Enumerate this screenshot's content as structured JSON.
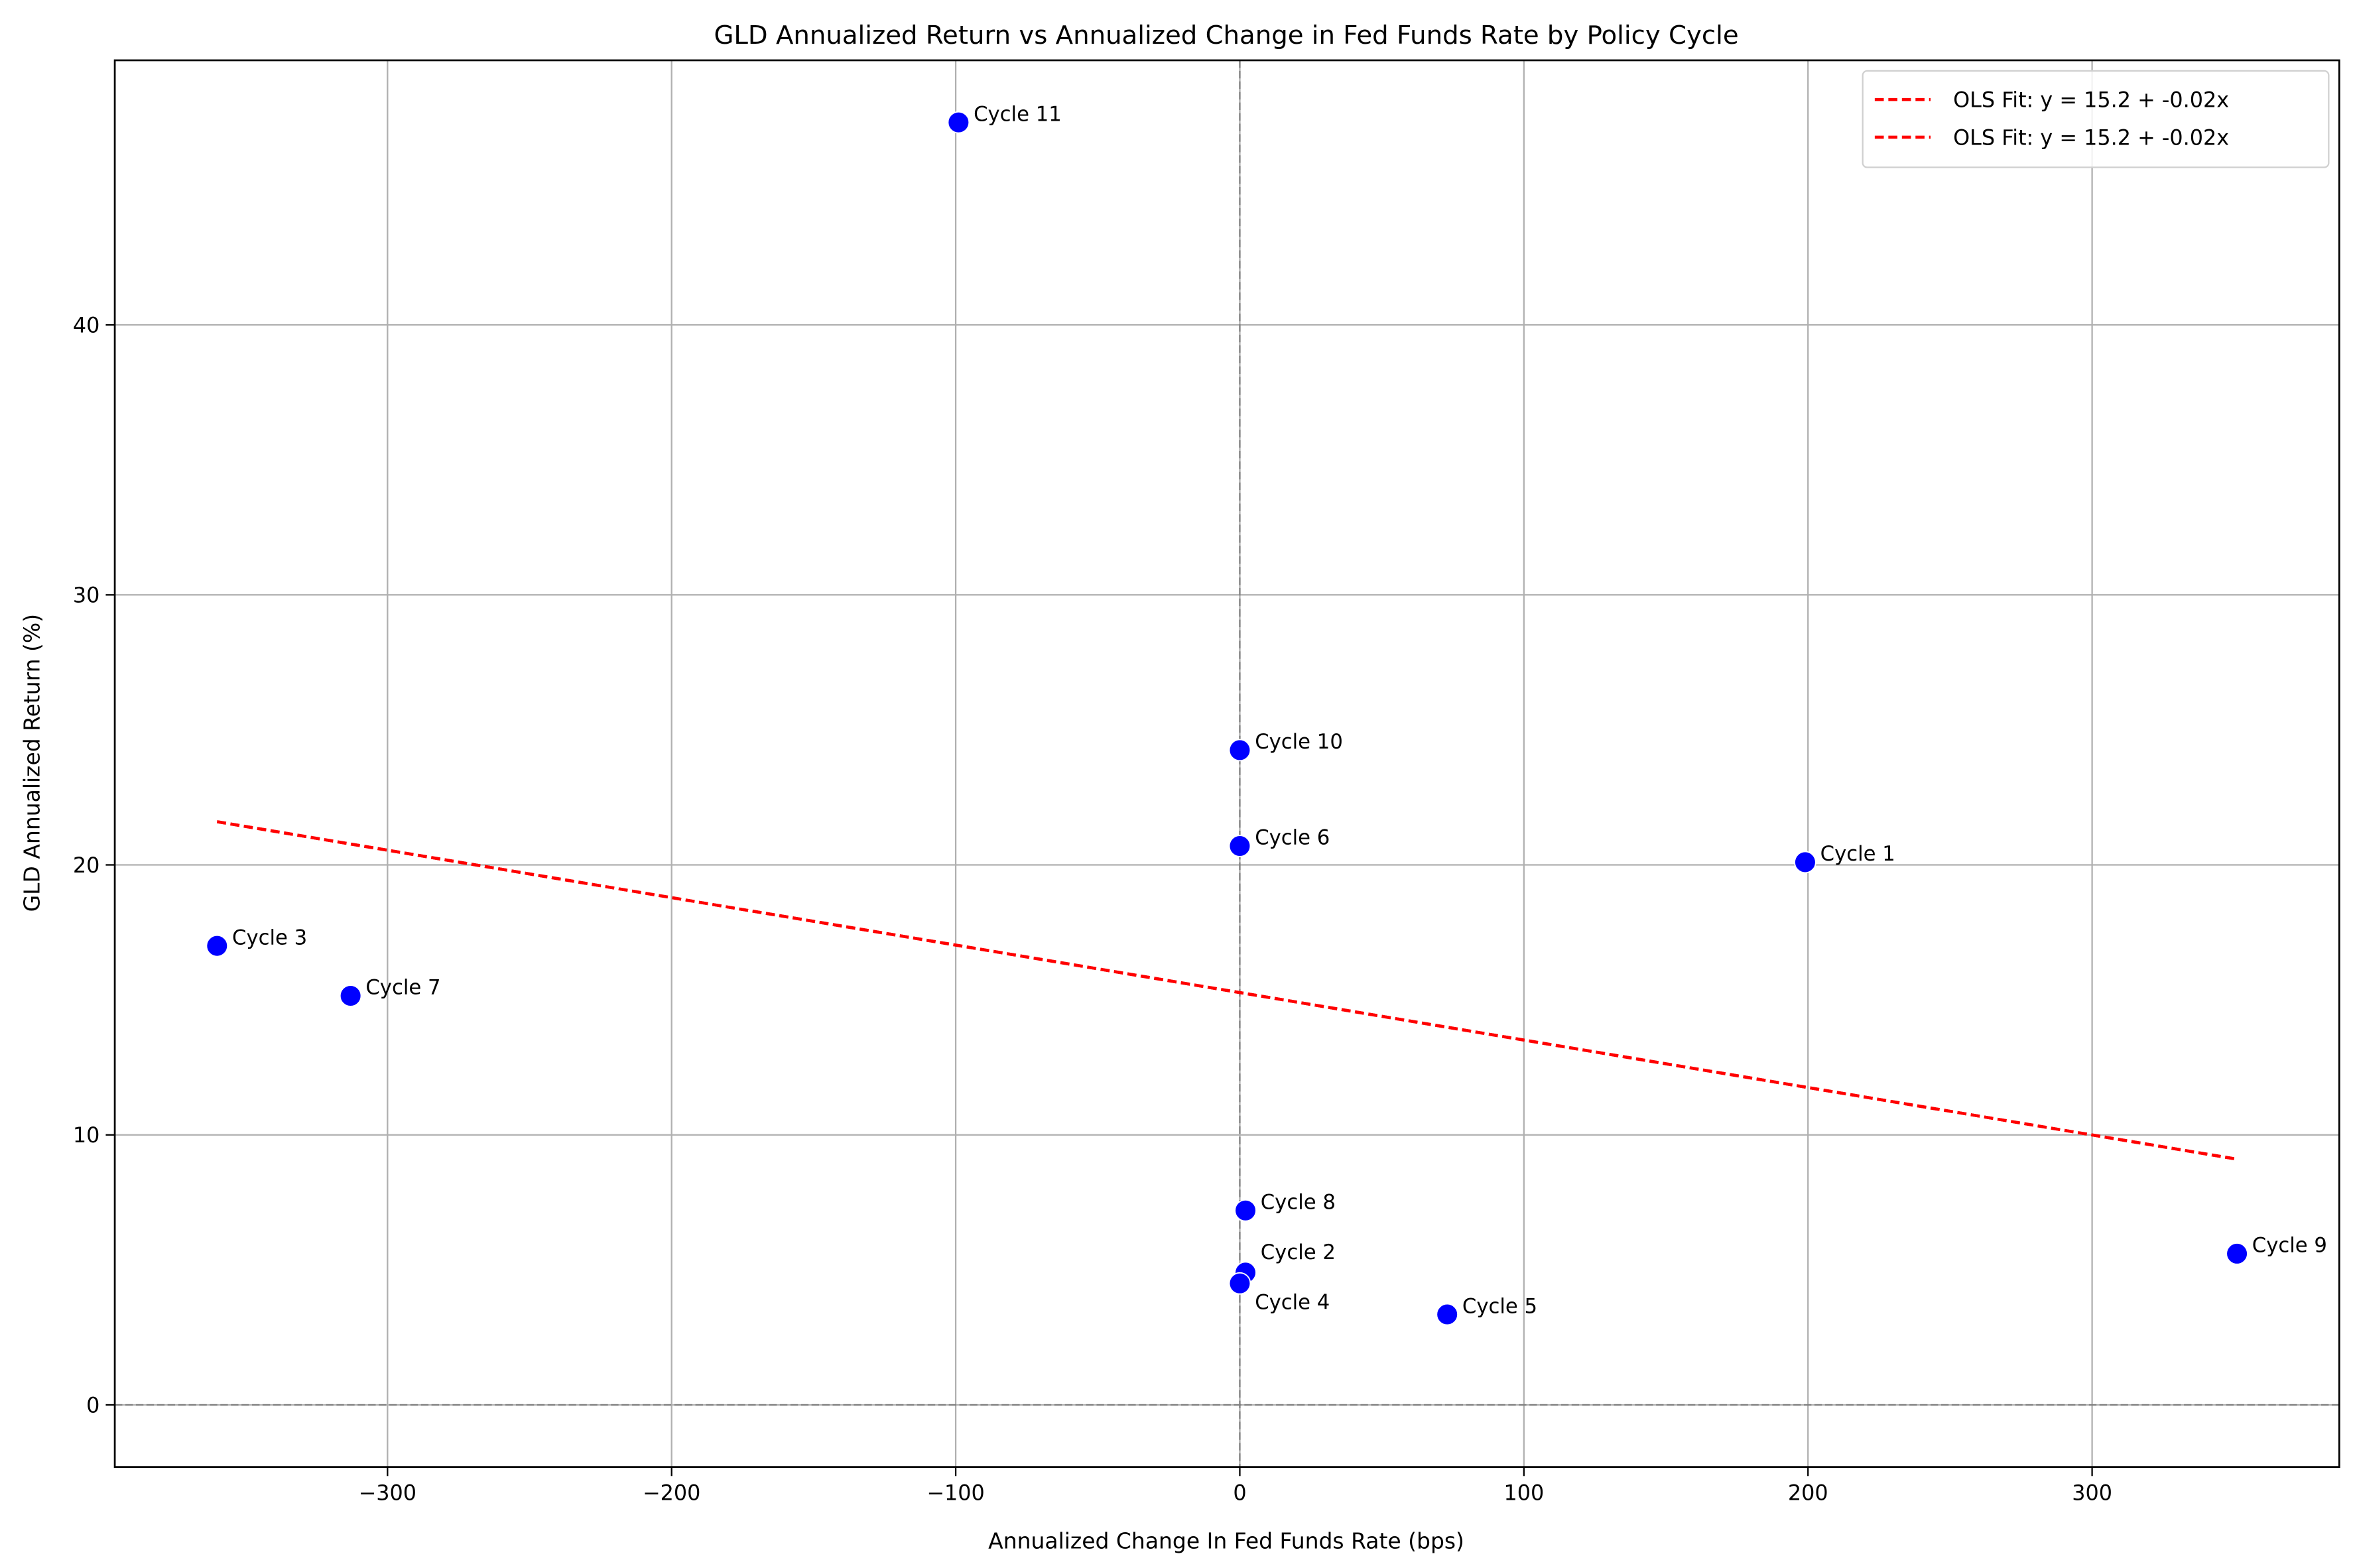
{
  "chart_data": {
    "type": "scatter",
    "title": "GLD Annualized Return vs Annualized Change in Fed Funds Rate by Policy Cycle",
    "xlabel": "Annualized Change In Fed Funds Rate (bps)",
    "ylabel": "GLD Annualized Return (%)",
    "xlim": [
      -396,
      387
    ],
    "ylim": [
      -2.3,
      49.8
    ],
    "xticks": [
      -300,
      -200,
      -100,
      0,
      100,
      200,
      300
    ],
    "xtick_labels": [
      "−300",
      "−200",
      "−100",
      "0",
      "100",
      "200",
      "300"
    ],
    "yticks": [
      0,
      10,
      20,
      30,
      40
    ],
    "ytick_labels": [
      "0",
      "10",
      "20",
      "30",
      "40"
    ],
    "grid": true,
    "legend_position": "top-right",
    "reference_lines": {
      "x": 0,
      "y": 0,
      "color": "#808080"
    },
    "points": [
      {
        "label": "Cycle 1",
        "x": 199,
        "y": 20.1
      },
      {
        "label": "Cycle 2",
        "x": 2,
        "y": 4.9
      },
      {
        "label": "Cycle 3",
        "x": -360,
        "y": 17.0
      },
      {
        "label": "Cycle 4",
        "x": 0,
        "y": 4.5
      },
      {
        "label": "Cycle 5",
        "x": 73,
        "y": 3.35
      },
      {
        "label": "Cycle 6",
        "x": 0,
        "y": 20.7
      },
      {
        "label": "Cycle 7",
        "x": -313,
        "y": 15.15
      },
      {
        "label": "Cycle 8",
        "x": 2,
        "y": 7.2
      },
      {
        "label": "Cycle 9",
        "x": 351,
        "y": 5.6
      },
      {
        "label": "Cycle 10",
        "x": 0,
        "y": 24.25
      },
      {
        "label": "Cycle 11",
        "x": -99,
        "y": 47.5
      }
    ],
    "point_color": "#0000ff",
    "fit_lines": [
      {
        "name": "OLS Fit: y = 15.2 + -0.02x",
        "x": [
          -360,
          351
        ],
        "y": [
          21.6,
          9.1
        ],
        "color": "#ff0000"
      },
      {
        "name": "OLS Fit: y = 15.2 + -0.02x",
        "x": [
          -360,
          351
        ],
        "y": [
          21.6,
          9.1
        ],
        "color": "#ff0000"
      }
    ]
  }
}
